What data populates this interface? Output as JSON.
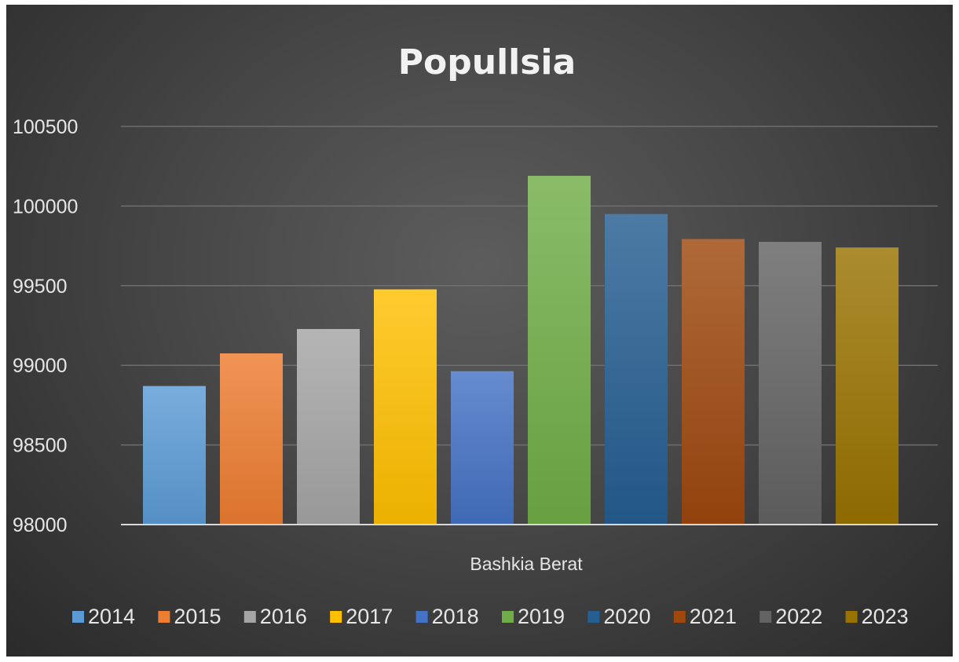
{
  "chart_data": {
    "type": "bar",
    "title": "Popullsia",
    "category": "Bashkia Berat",
    "ylim": [
      98000,
      100500
    ],
    "yticks": [
      "98000",
      "98500",
      "99000",
      "99500",
      "100000",
      "100500"
    ],
    "grid": true,
    "legend_position": "bottom",
    "series": [
      {
        "name": "2014",
        "value": 98870,
        "color": "#5b9bd5"
      },
      {
        "name": "2015",
        "value": 99075,
        "color": "#ed7d31"
      },
      {
        "name": "2016",
        "value": 99228,
        "color": "#a5a5a5"
      },
      {
        "name": "2017",
        "value": 99477,
        "color": "#ffc000"
      },
      {
        "name": "2018",
        "value": 98963,
        "color": "#4472c4"
      },
      {
        "name": "2019",
        "value": 100190,
        "color": "#70ad47"
      },
      {
        "name": "2020",
        "value": 99950,
        "color": "#255e91"
      },
      {
        "name": "2021",
        "value": 99793,
        "color": "#9e480e"
      },
      {
        "name": "2022",
        "value": 99775,
        "color": "#636363"
      },
      {
        "name": "2023",
        "value": 99740,
        "color": "#997300"
      }
    ]
  }
}
